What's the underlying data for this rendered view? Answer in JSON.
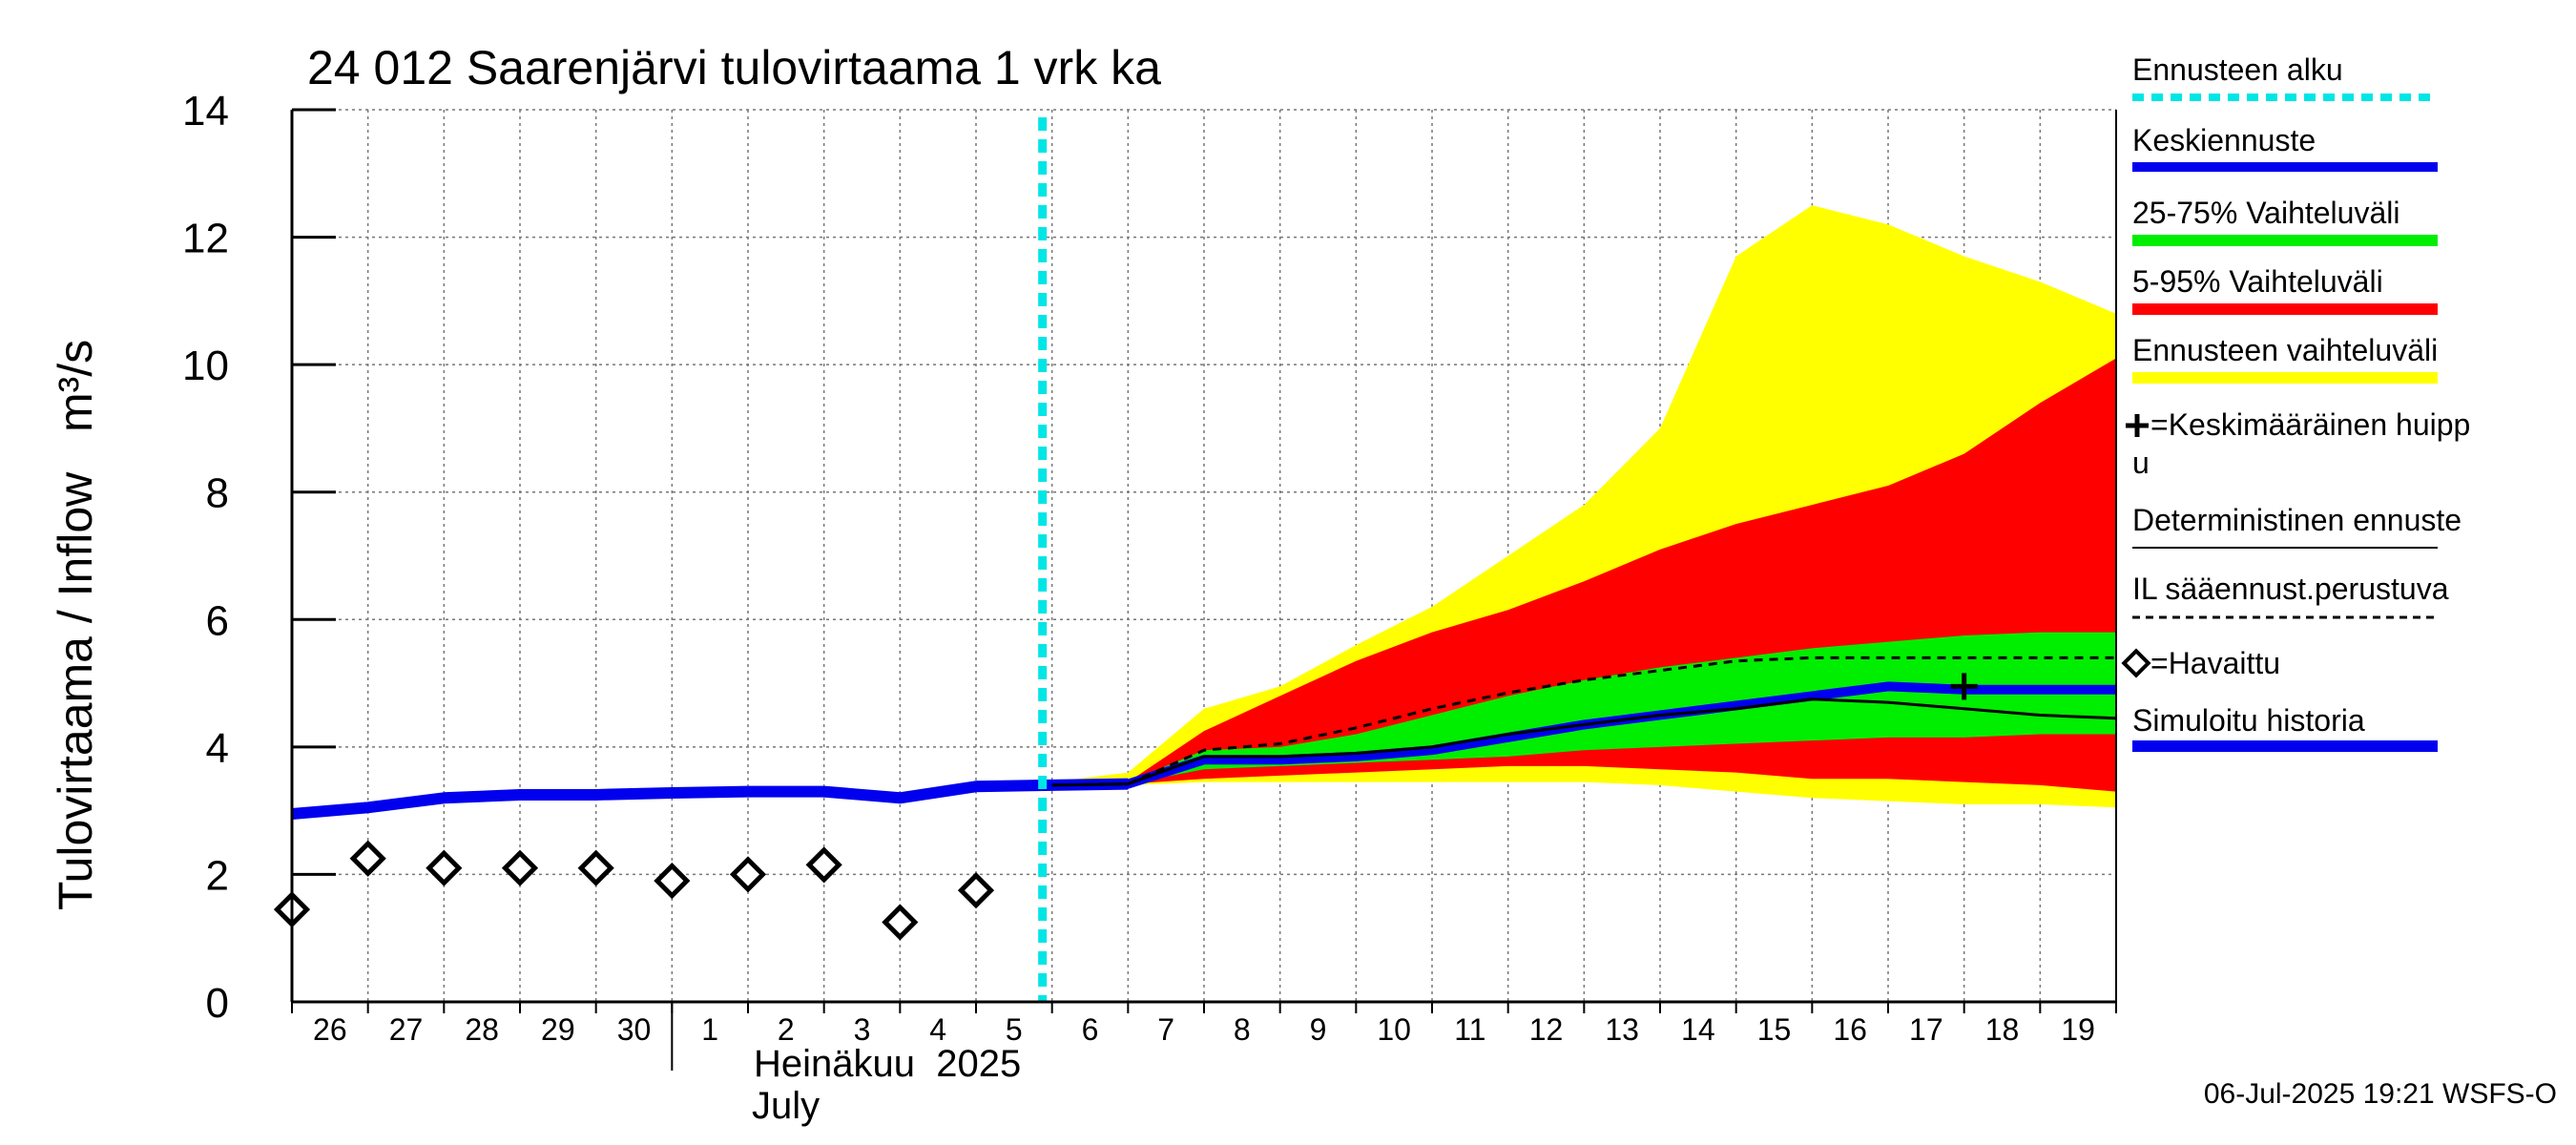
{
  "chart_data": {
    "type": "area",
    "title": "24 012 Saarenjärvi tulovirtaama 1 vrk ka",
    "ylabel": "Tulovirtaama / Inflow   m³/s",
    "month_label_fi": "Heinäkuu  2025",
    "month_label_en": "July",
    "ylim": [
      0,
      14
    ],
    "yticks": [
      "0",
      "2",
      "4",
      "6",
      "8",
      "10",
      "12",
      "14"
    ],
    "xlim": [
      "2025-06-26",
      "2025-07-20"
    ],
    "x_tick_labels": [
      "26",
      "27",
      "28",
      "29",
      "30",
      "1",
      "2",
      "3",
      "4",
      "5",
      "6",
      "7",
      "8",
      "9",
      "10",
      "11",
      "12",
      "13",
      "14",
      "15",
      "16",
      "17",
      "18",
      "19"
    ],
    "grid": true,
    "forecast_start": "2025-07-06",
    "legend_position": "right",
    "footer": "06-Jul-2025 19:21 WSFS-O",
    "legend": {
      "forecast_start": "Ennusteen alku",
      "mean_forecast": "Keskiennuste",
      "range_25_75": "25-75% Vaihteluväli",
      "range_5_95": "5-95% Vaihteluväli",
      "forecast_range": "Ennusteen vaihteluväli",
      "mean_peak_line1": "=Keskimääräinen huipp",
      "mean_peak_line2": "u",
      "deterministic": "Deterministinen ennuste",
      "il_weather": "IL sääennust.perustuva",
      "observed": "=Havaittu",
      "simulated": "Simuloitu historia"
    },
    "colors": {
      "forecast_start": "#00e5e5",
      "mean_forecast": "#0000ee",
      "range_25_75": "#00ee00",
      "range_5_95": "#ff0000",
      "forecast_range": "#ffff00",
      "deterministic": "#000000",
      "observed": "#000000",
      "simulated": "#0000ee"
    },
    "simulated_history": {
      "x": [
        "2025-06-26",
        "2025-06-27",
        "2025-06-28",
        "2025-06-29",
        "2025-06-30",
        "2025-07-01",
        "2025-07-02",
        "2025-07-03",
        "2025-07-04",
        "2025-07-05",
        "2025-07-06",
        "2025-07-07"
      ],
      "y": [
        2.95,
        3.05,
        3.2,
        3.25,
        3.25,
        3.28,
        3.3,
        3.3,
        3.2,
        3.38,
        3.4,
        3.42
      ]
    },
    "observed": {
      "x": [
        "2025-06-26",
        "2025-06-27",
        "2025-06-28",
        "2025-06-29",
        "2025-06-30",
        "2025-07-01",
        "2025-07-02",
        "2025-07-03",
        "2025-07-04",
        "2025-07-05"
      ],
      "y": [
        1.45,
        2.25,
        2.1,
        2.1,
        2.1,
        1.9,
        2.0,
        2.15,
        1.25,
        1.75
      ]
    },
    "forecast_x": [
      "2025-07-06",
      "2025-07-07",
      "2025-07-08",
      "2025-07-09",
      "2025-07-10",
      "2025-07-11",
      "2025-07-12",
      "2025-07-13",
      "2025-07-14",
      "2025-07-15",
      "2025-07-16",
      "2025-07-17",
      "2025-07-18",
      "2025-07-19",
      "2025-07-20"
    ],
    "forecast_range": {
      "low": [
        3.4,
        3.4,
        3.45,
        3.45,
        3.45,
        3.45,
        3.45,
        3.45,
        3.4,
        3.3,
        3.2,
        3.15,
        3.1,
        3.1,
        3.05
      ],
      "high": [
        3.45,
        3.6,
        4.6,
        4.95,
        5.6,
        6.2,
        7.0,
        7.8,
        9.0,
        11.7,
        12.5,
        12.2,
        11.7,
        11.3,
        10.8
      ]
    },
    "range_5_95": {
      "low": [
        3.4,
        3.42,
        3.5,
        3.55,
        3.6,
        3.65,
        3.7,
        3.7,
        3.65,
        3.6,
        3.5,
        3.5,
        3.45,
        3.4,
        3.3
      ],
      "high": [
        3.42,
        3.45,
        4.25,
        4.8,
        5.35,
        5.8,
        6.15,
        6.6,
        7.1,
        7.5,
        7.8,
        8.1,
        8.6,
        9.4,
        10.1
      ]
    },
    "range_25_75": {
      "low": [
        3.4,
        3.42,
        3.65,
        3.7,
        3.75,
        3.8,
        3.85,
        3.95,
        4.0,
        4.05,
        4.1,
        4.15,
        4.15,
        4.2,
        4.2
      ],
      "high": [
        3.42,
        3.45,
        3.95,
        4.0,
        4.2,
        4.5,
        4.8,
        5.05,
        5.25,
        5.4,
        5.55,
        5.65,
        5.75,
        5.8,
        5.8
      ]
    },
    "mean_forecast": {
      "y": [
        3.4,
        3.42,
        3.8,
        3.8,
        3.85,
        3.95,
        4.15,
        4.35,
        4.5,
        4.65,
        4.8,
        4.95,
        4.9,
        4.9,
        4.9
      ]
    },
    "deterministic": {
      "y": [
        3.4,
        3.42,
        3.85,
        3.85,
        3.9,
        4.0,
        4.2,
        4.35,
        4.5,
        4.6,
        4.75,
        4.7,
        4.6,
        4.5,
        4.45
      ]
    },
    "il_weather": {
      "y": [
        3.4,
        3.42,
        3.95,
        4.05,
        4.3,
        4.6,
        4.85,
        5.05,
        5.2,
        5.35,
        5.4,
        5.4,
        5.4,
        5.4,
        5.4
      ]
    },
    "mean_peak": {
      "x": "2025-07-18",
      "y": 4.95
    }
  }
}
